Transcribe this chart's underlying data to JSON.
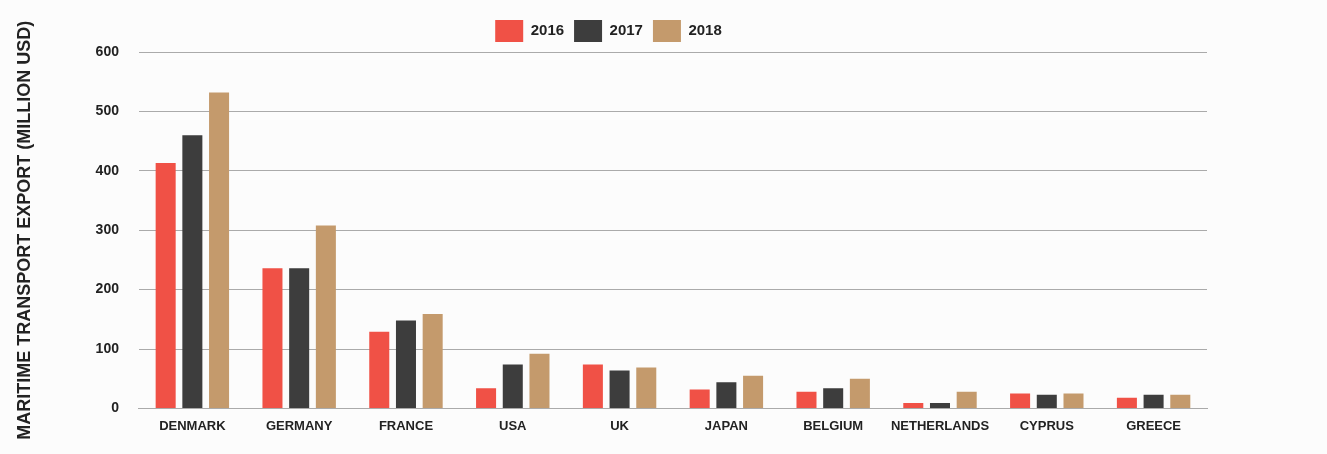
{
  "chart_data": {
    "type": "bar",
    "ylabel": "MARITIME TRANSPORT EXPORT (MILLION USD)",
    "categories": [
      "DENMARK",
      "GERMANY",
      "FRANCE",
      "USA",
      "UK",
      "JAPAN",
      "BELGIUM",
      "NETHERLANDS",
      "CYPRUS",
      "GREECE"
    ],
    "series": [
      {
        "name": "2016",
        "color": "#f05146",
        "values": [
          413,
          236,
          129,
          34,
          74,
          32,
          28,
          9,
          25,
          18
        ]
      },
      {
        "name": "2017",
        "color": "#3d3d3d",
        "values": [
          460,
          236,
          148,
          74,
          64,
          44,
          34,
          9,
          23,
          23
        ]
      },
      {
        "name": "2018",
        "color": "#c49a6c",
        "values": [
          532,
          308,
          159,
          92,
          69,
          55,
          50,
          28,
          25,
          23
        ]
      }
    ],
    "ylim": [
      0,
      600
    ],
    "yticks": [
      0,
      100,
      200,
      300,
      400,
      500,
      600
    ],
    "grid": "y",
    "legend": "top"
  }
}
